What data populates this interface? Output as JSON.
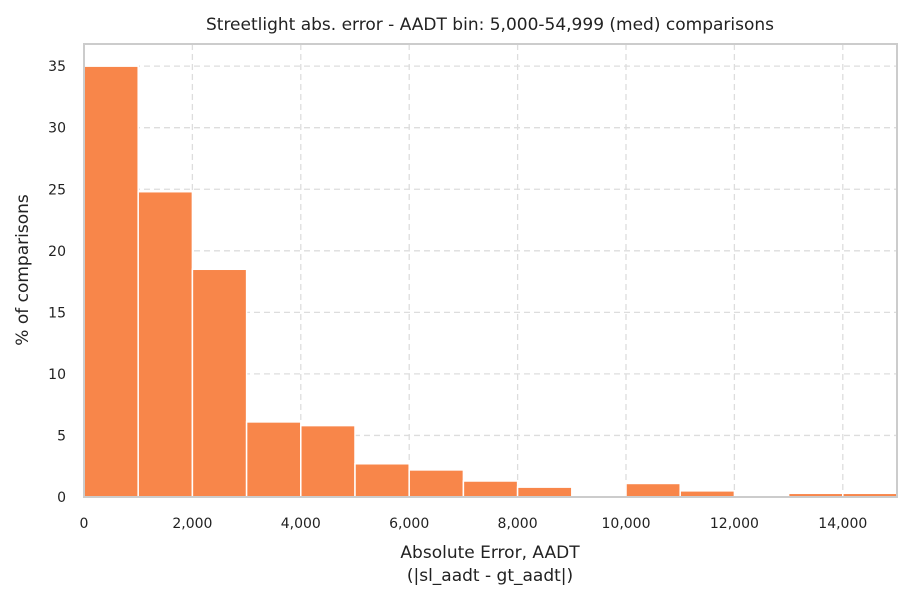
{
  "chart_data": {
    "type": "bar",
    "title": "Streetlight abs. error - AADT bin: 5,000-54,999 (med) comparisons",
    "xlabel_line1": "Absolute Error, AADT",
    "xlabel_line2": "(|sl_aadt - gt_aadt|)",
    "ylabel": "% of comparisons",
    "xlim": [
      0,
      15000
    ],
    "ylim": [
      0,
      36.8
    ],
    "grid": true,
    "bar_color": "#f8864a",
    "bin_width": 1000,
    "bin_starts": [
      0,
      1000,
      2000,
      3000,
      4000,
      5000,
      6000,
      7000,
      8000,
      9000,
      10000,
      11000,
      12000,
      13000,
      14000
    ],
    "values": [
      35.0,
      24.8,
      18.5,
      6.1,
      5.8,
      2.7,
      2.2,
      1.3,
      0.8,
      0.0,
      1.1,
      0.5,
      0.0,
      0.3,
      0.3
    ],
    "x_ticks": [
      {
        "value": 0,
        "label": "0"
      },
      {
        "value": 2000,
        "label": "2,000"
      },
      {
        "value": 4000,
        "label": "4,000"
      },
      {
        "value": 6000,
        "label": "6,000"
      },
      {
        "value": 8000,
        "label": "8,000"
      },
      {
        "value": 10000,
        "label": "10,000"
      },
      {
        "value": 12000,
        "label": "12,000"
      },
      {
        "value": 14000,
        "label": "14,000"
      }
    ],
    "y_ticks": [
      {
        "value": 0,
        "label": "0"
      },
      {
        "value": 5,
        "label": "5"
      },
      {
        "value": 10,
        "label": "10"
      },
      {
        "value": 15,
        "label": "15"
      },
      {
        "value": 20,
        "label": "20"
      },
      {
        "value": 25,
        "label": "25"
      },
      {
        "value": 30,
        "label": "30"
      },
      {
        "value": 35,
        "label": "35"
      }
    ]
  }
}
